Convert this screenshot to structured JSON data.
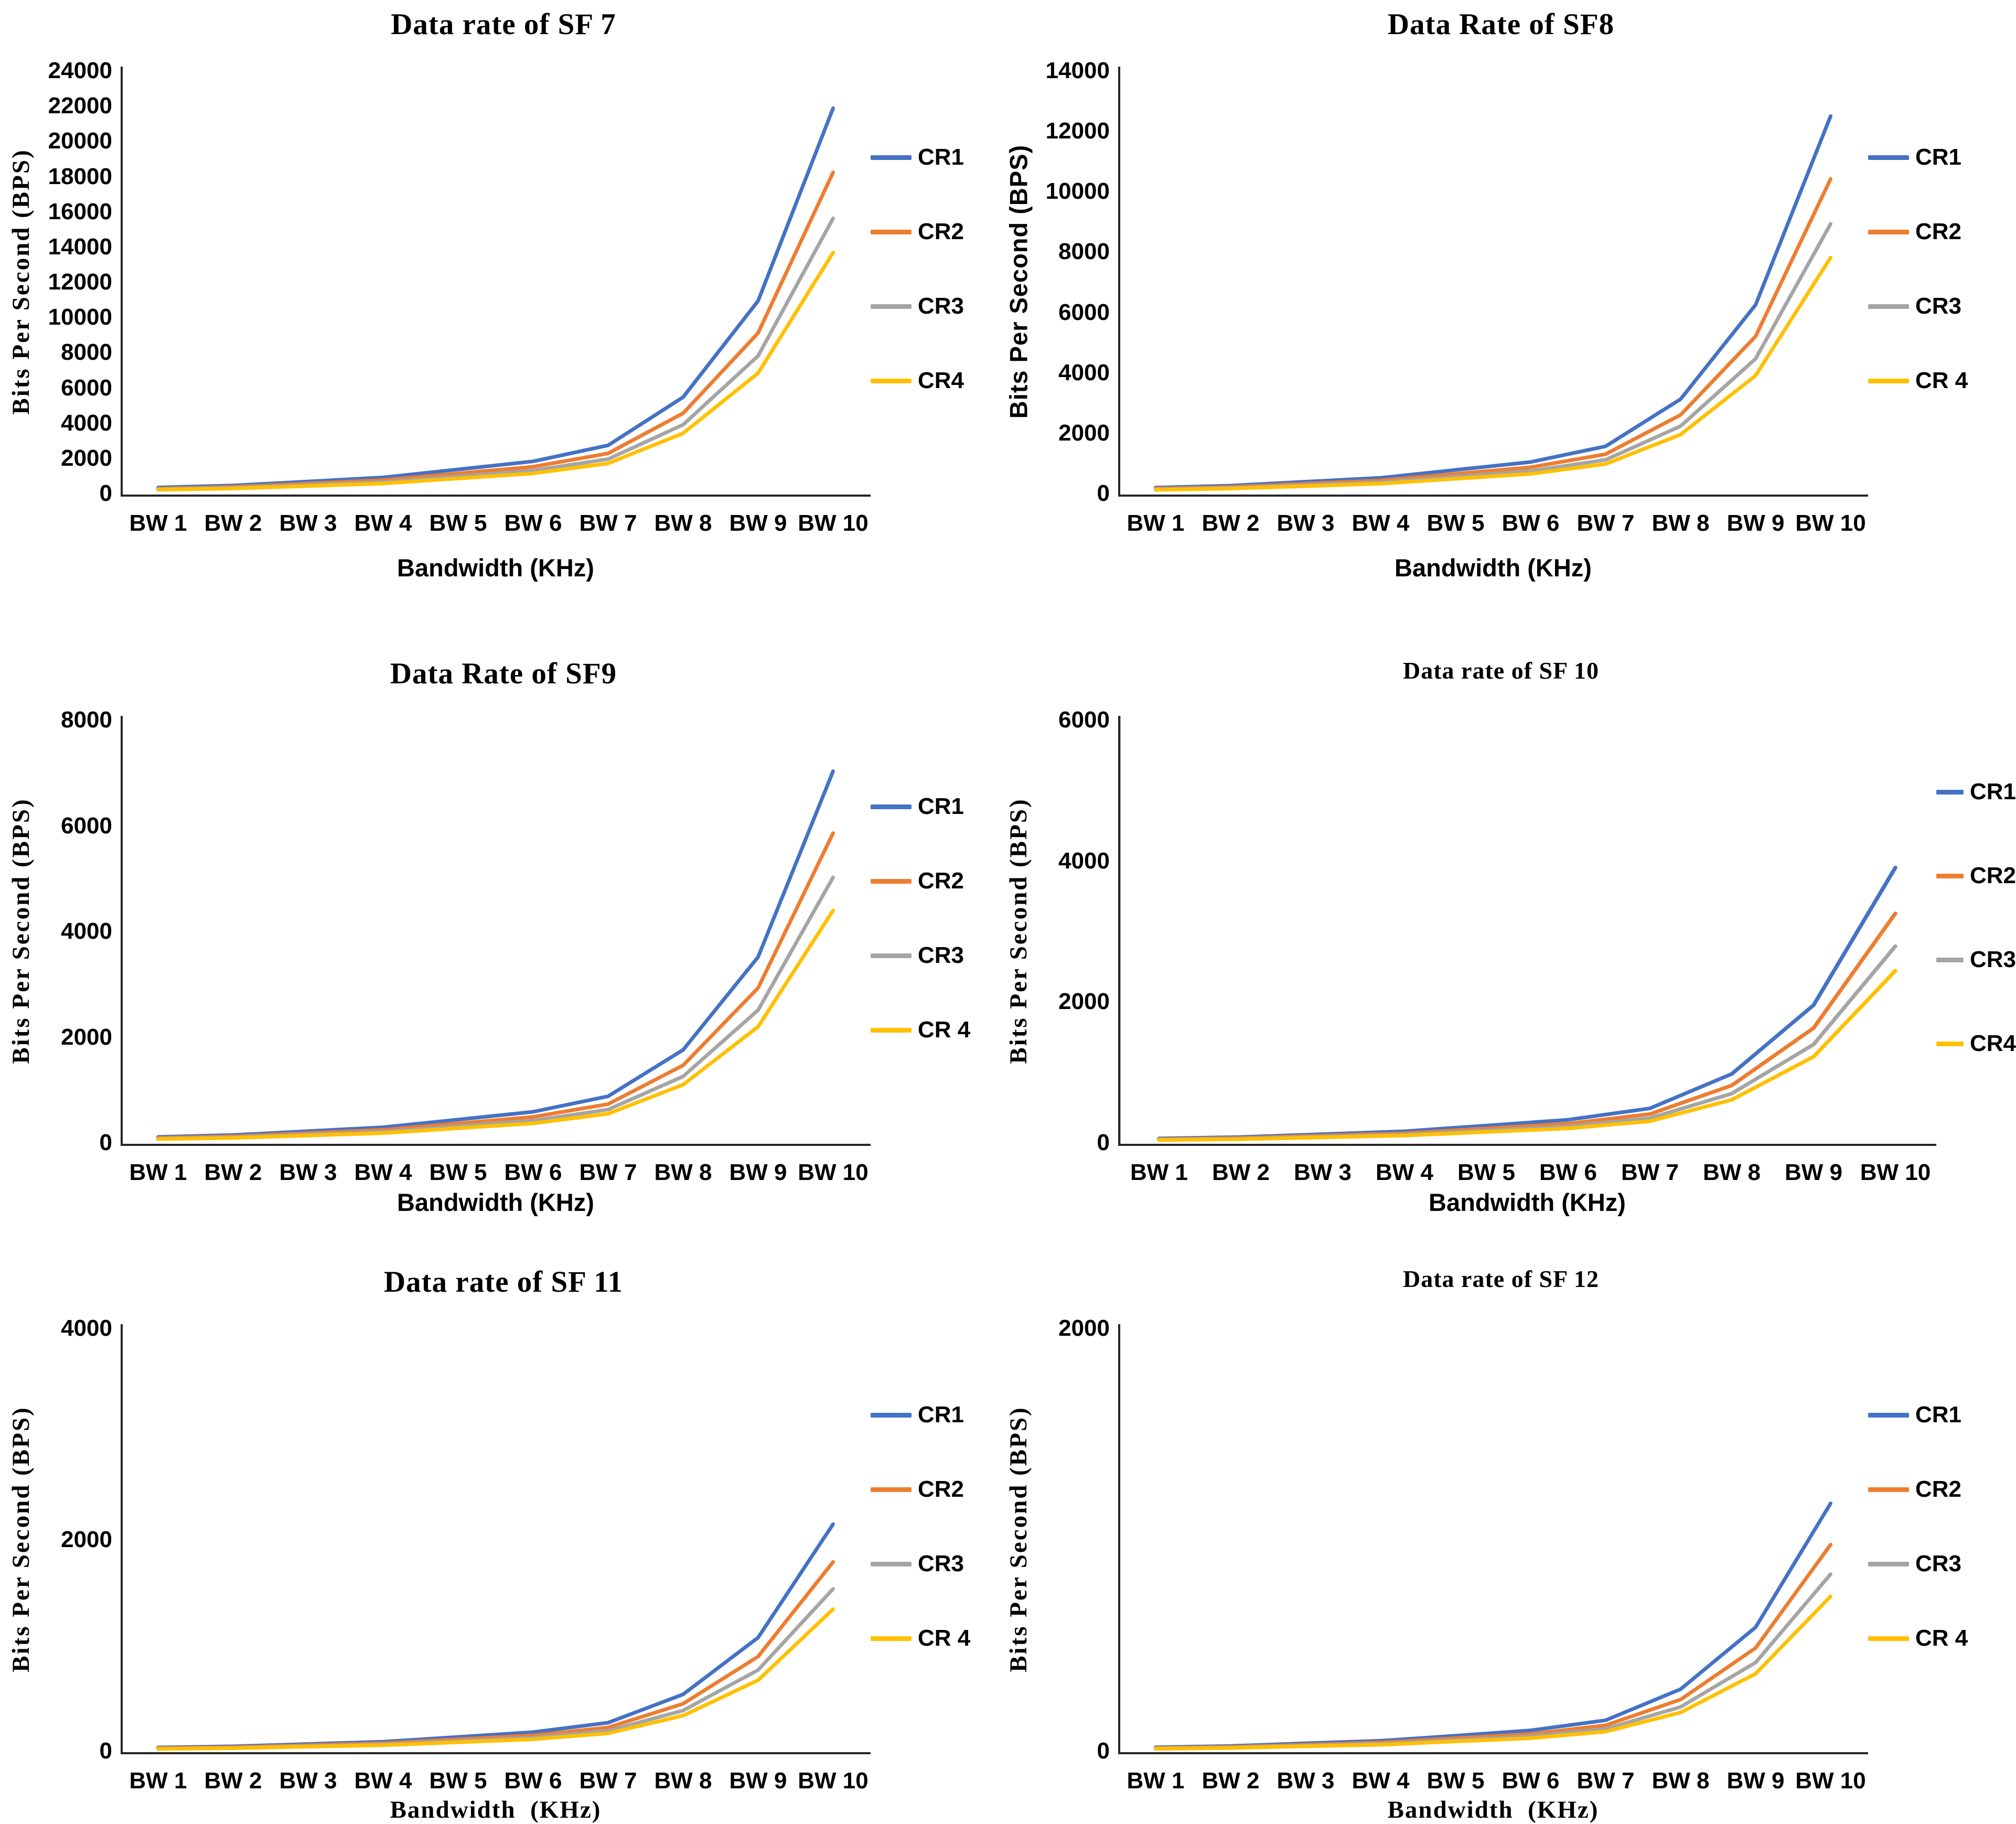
{
  "figure": {
    "description": "Six line charts of LoRa data rate versus bandwidth for spreading factors 7 to 12",
    "series_colors": {
      "CR1": "#4472C4",
      "CR2": "#ED7D31",
      "CR3": "#A5A5A5",
      "CR4": "#FFC000"
    }
  },
  "chart_data": [
    {
      "type": "line",
      "title": "Data rate of SF 7",
      "xlabel": "Bandwidth (KHz)",
      "ylabel": "Bits Per Second (BPS)",
      "categories": [
        "BW 1",
        "BW 2",
        "BW 3",
        "BW 4",
        "BW 5",
        "BW 6",
        "BW 7",
        "BW 8",
        "BW 9",
        "BW 10"
      ],
      "ylim": [
        0,
        24000
      ],
      "yticks": [
        0,
        2000,
        4000,
        6000,
        8000,
        10000,
        12000,
        14000,
        16000,
        18000,
        20000,
        22000,
        24000
      ],
      "grid": false,
      "legend_position": "right",
      "series": [
        {
          "name": "CR1",
          "color": "#4472C4",
          "values": [
            341,
            455,
            682,
            910,
            1367,
            1824,
            2734,
            5469,
            10938,
            21875
          ]
        },
        {
          "name": "CR2",
          "color": "#ED7D31",
          "values": [
            284,
            379,
            569,
            758,
            1139,
            1520,
            2279,
            4557,
            9115,
            18229
          ]
        },
        {
          "name": "CR3",
          "color": "#A5A5A5",
          "values": [
            244,
            325,
            488,
            650,
            977,
            1303,
            1953,
            3906,
            7813,
            15625
          ]
        },
        {
          "name": "CR4",
          "color": "#FFC000",
          "values": [
            213,
            284,
            427,
            569,
            854,
            1140,
            1709,
            3418,
            6836,
            13672
          ]
        }
      ]
    },
    {
      "type": "line",
      "title": "Data Rate of SF8",
      "xlabel": "Bandwidth (KHz)",
      "ylabel": "Bits Per Second (BPS)",
      "categories": [
        "BW 1",
        "BW 2",
        "BW 3",
        "BW 4",
        "BW 5",
        "BW 6",
        "BW 7",
        "BW 8",
        "BW 9",
        "BW 10"
      ],
      "ylim": [
        0,
        14000
      ],
      "yticks": [
        0,
        2000,
        4000,
        6000,
        8000,
        10000,
        12000,
        14000
      ],
      "grid": false,
      "legend_position": "right",
      "series": [
        {
          "name": "CR1",
          "color": "#4472C4",
          "values": [
            195,
            260,
            390,
            520,
            781,
            1043,
            1563,
            3125,
            6250,
            12500
          ]
        },
        {
          "name": "CR2",
          "color": "#ED7D31",
          "values": [
            163,
            217,
            325,
            433,
            651,
            869,
            1302,
            2604,
            5208,
            10417
          ]
        },
        {
          "name": "CR3",
          "color": "#A5A5A5",
          "values": [
            139,
            186,
            279,
            371,
            558,
            745,
            1116,
            2232,
            4464,
            8929
          ]
        },
        {
          "name": "CR 4",
          "color": "#FFC000",
          "values": [
            122,
            163,
            244,
            325,
            488,
            652,
            977,
            1953,
            3906,
            7813
          ]
        }
      ]
    },
    {
      "type": "line",
      "title": "Data Rate of SF9",
      "xlabel": "Bandwidth (KHz)",
      "ylabel": "Bits Per Second (BPS)",
      "categories": [
        "BW 1",
        "BW 2",
        "BW 3",
        "BW 4",
        "BW 5",
        "BW 6",
        "BW 7",
        "BW 8",
        "BW 9",
        "BW 10"
      ],
      "ylim": [
        0,
        8000
      ],
      "yticks": [
        0,
        2000,
        4000,
        6000,
        8000
      ],
      "grid": false,
      "legend_position": "right",
      "series": [
        {
          "name": "CR1",
          "color": "#4472C4",
          "values": [
            110,
            146,
            219,
            293,
            439,
            586,
            879,
            1758,
            3516,
            7031
          ]
        },
        {
          "name": "CR2",
          "color": "#ED7D31",
          "values": [
            91,
            122,
            183,
            244,
            366,
            489,
            732,
            1465,
            2930,
            5859
          ]
        },
        {
          "name": "CR3",
          "color": "#A5A5A5",
          "values": [
            78,
            105,
            157,
            209,
            314,
            419,
            628,
            1256,
            2511,
            5022
          ]
        },
        {
          "name": "CR 4",
          "color": "#FFC000",
          "values": [
            69,
            91,
            137,
            183,
            275,
            367,
            549,
            1099,
            2197,
            4395
          ]
        }
      ]
    },
    {
      "type": "line",
      "title": "Data rate of SF 10",
      "xlabel": "Bandwidth (KHz)",
      "ylabel": "Bits Per Second (BPS)",
      "categories": [
        "BW 1",
        "BW 2",
        "BW 3",
        "BW 4",
        "BW 5",
        "BW 6",
        "BW 7",
        "BW 8",
        "BW 9",
        "BW 10"
      ],
      "ylim": [
        0,
        6000
      ],
      "yticks": [
        0,
        2000,
        4000,
        6000
      ],
      "grid": false,
      "legend_position": "right",
      "series": [
        {
          "name": "CR1",
          "color": "#4472C4",
          "values": [
            61,
            81,
            122,
            163,
            244,
            326,
            488,
            977,
            1953,
            3906
          ]
        },
        {
          "name": "CR2",
          "color": "#ED7D31",
          "values": [
            51,
            68,
            102,
            135,
            203,
            271,
            407,
            814,
            1628,
            3255
          ]
        },
        {
          "name": "CR3",
          "color": "#A5A5A5",
          "values": [
            44,
            58,
            87,
            116,
            174,
            233,
            349,
            698,
            1395,
            2790
          ]
        },
        {
          "name": "CR4",
          "color": "#FFC000",
          "values": [
            38,
            51,
            76,
            102,
            153,
            204,
            305,
            610,
            1221,
            2441
          ]
        }
      ]
    },
    {
      "type": "line",
      "title": "Data rate of SF 11",
      "xlabel": "Bandwidth  (KHz)",
      "ylabel": "Bits Per Second (BPS)",
      "categories": [
        "BW 1",
        "BW 2",
        "BW 3",
        "BW 4",
        "BW 5",
        "BW 6",
        "BW 7",
        "BW 8",
        "BW 9",
        "BW 10"
      ],
      "ylim": [
        0,
        4000
      ],
      "yticks": [
        0,
        2000,
        4000
      ],
      "grid": false,
      "legend_position": "right",
      "series": [
        {
          "name": "CR1",
          "color": "#4472C4",
          "values": [
            34,
            45,
            67,
            89,
            134,
            179,
            269,
            537,
            1074,
            2148
          ]
        },
        {
          "name": "CR2",
          "color": "#ED7D31",
          "values": [
            28,
            37,
            56,
            75,
            112,
            149,
            224,
            448,
            895,
            1790
          ]
        },
        {
          "name": "CR3",
          "color": "#A5A5A5",
          "values": [
            24,
            32,
            48,
            64,
            96,
            128,
            192,
            384,
            767,
            1535
          ]
        },
        {
          "name": "CR 4",
          "color": "#FFC000",
          "values": [
            21,
            28,
            42,
            56,
            84,
            112,
            168,
            336,
            671,
            1343
          ]
        }
      ]
    },
    {
      "type": "line",
      "title": "Data rate of SF 12",
      "xlabel": "Bandwidth  (KHz)",
      "ylabel": "Bits Per Second (BPS)",
      "categories": [
        "BW 1",
        "BW 2",
        "BW 3",
        "BW 4",
        "BW 5",
        "BW 6",
        "BW 7",
        "BW 8",
        "BW 9",
        "BW 10"
      ],
      "ylim": [
        0,
        2000
      ],
      "yticks": [
        0,
        2000
      ],
      "grid": false,
      "legend_position": "right",
      "series": [
        {
          "name": "CR1",
          "color": "#4472C4",
          "values": [
            18,
            24,
            37,
            49,
            73,
            98,
            146,
            293,
            586,
            1172
          ]
        },
        {
          "name": "CR2",
          "color": "#ED7D31",
          "values": [
            15,
            20,
            30,
            41,
            61,
            81,
            122,
            244,
            488,
            977
          ]
        },
        {
          "name": "CR3",
          "color": "#A5A5A5",
          "values": [
            13,
            17,
            26,
            35,
            52,
            70,
            105,
            209,
            419,
            837
          ]
        },
        {
          "name": "CR 4",
          "color": "#FFC000",
          "values": [
            11,
            15,
            23,
            30,
            46,
            61,
            92,
            183,
            366,
            732
          ]
        }
      ]
    }
  ]
}
